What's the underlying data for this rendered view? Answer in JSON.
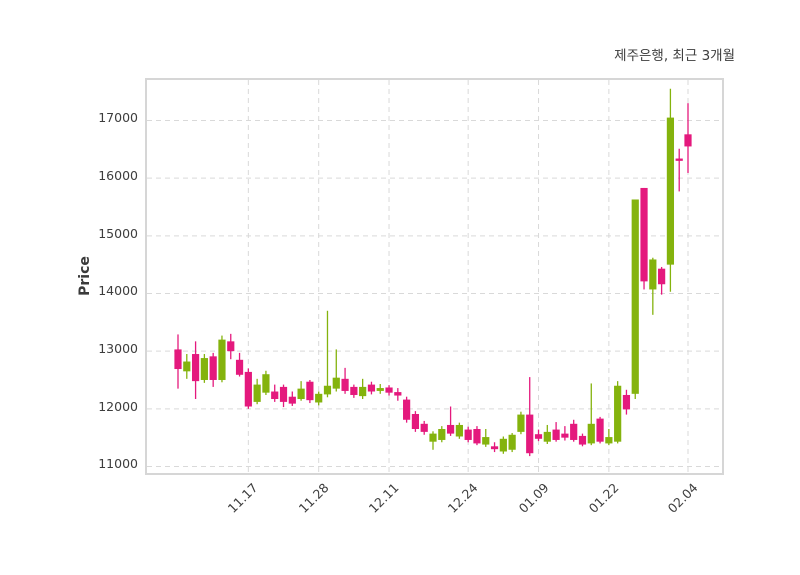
{
  "title": "제주은행, 최근 3개월",
  "ylabel": "Price",
  "chart_data": {
    "type": "candlestick",
    "title": "제주은행, 최근 3개월",
    "xlabel": "",
    "ylabel": "Price",
    "up_color": "#84b30d",
    "down_color": "#e4197d",
    "grid_color": "#d9d9d9",
    "text_color": "#3d3d3d",
    "grid": "both-dashed",
    "ylim": [
      10887,
      17702
    ],
    "yticks": [
      11000,
      12000,
      13000,
      14000,
      15000,
      16000,
      17000
    ],
    "xticks": [
      {
        "index": 8,
        "label": "11.17"
      },
      {
        "index": 16,
        "label": "11.28"
      },
      {
        "index": 24,
        "label": "12.11"
      },
      {
        "index": 33,
        "label": "12.24"
      },
      {
        "index": 41,
        "label": "01.09"
      },
      {
        "index": 49,
        "label": "01.22"
      },
      {
        "index": 58,
        "label": "02.04"
      }
    ],
    "ohlc_note": "each candle is [open, high, low, close] in KRW",
    "candles": [
      [
        13030,
        13290,
        12350,
        12690
      ],
      [
        12650,
        12950,
        12520,
        12820
      ],
      [
        12950,
        13170,
        12170,
        12480
      ],
      [
        12500,
        12950,
        12450,
        12880
      ],
      [
        12910,
        12970,
        12380,
        12500
      ],
      [
        12500,
        13270,
        12460,
        13200
      ],
      [
        13170,
        13300,
        12860,
        13000
      ],
      [
        12850,
        12970,
        12560,
        12590
      ],
      [
        12640,
        12700,
        12000,
        12040
      ],
      [
        12120,
        12520,
        12080,
        12420
      ],
      [
        12280,
        12660,
        12240,
        12600
      ],
      [
        12300,
        12420,
        12120,
        12170
      ],
      [
        12380,
        12420,
        12030,
        12120
      ],
      [
        12210,
        12300,
        12050,
        12090
      ],
      [
        12170,
        12480,
        12140,
        12350
      ],
      [
        12470,
        12500,
        12100,
        12150
      ],
      [
        12110,
        12300,
        12060,
        12260
      ],
      [
        12250,
        13700,
        12200,
        12400
      ],
      [
        12350,
        13030,
        12300,
        12540
      ],
      [
        12520,
        12710,
        12260,
        12310
      ],
      [
        12380,
        12420,
        12190,
        12240
      ],
      [
        12220,
        12520,
        12170,
        12380
      ],
      [
        12420,
        12470,
        12250,
        12300
      ],
      [
        12310,
        12430,
        12260,
        12360
      ],
      [
        12370,
        12410,
        12230,
        12280
      ],
      [
        12290,
        12360,
        12140,
        12230
      ],
      [
        12160,
        12210,
        11760,
        11810
      ],
      [
        11910,
        11960,
        11600,
        11650
      ],
      [
        11740,
        11790,
        11550,
        11600
      ],
      [
        11430,
        11610,
        11290,
        11570
      ],
      [
        11460,
        11700,
        11420,
        11650
      ],
      [
        11720,
        12040,
        11530,
        11570
      ],
      [
        11520,
        11760,
        11480,
        11720
      ],
      [
        11640,
        11690,
        11420,
        11460
      ],
      [
        11650,
        11700,
        11370,
        11400
      ],
      [
        11380,
        11650,
        11340,
        11510
      ],
      [
        11350,
        11420,
        11250,
        11300
      ],
      [
        11260,
        11520,
        11220,
        11480
      ],
      [
        11290,
        11580,
        11250,
        11550
      ],
      [
        11600,
        11950,
        11560,
        11900
      ],
      [
        11900,
        12550,
        11180,
        11230
      ],
      [
        11560,
        11640,
        11440,
        11480
      ],
      [
        11430,
        11720,
        11390,
        11600
      ],
      [
        11640,
        11770,
        11430,
        11460
      ],
      [
        11570,
        11700,
        11450,
        11500
      ],
      [
        11740,
        11810,
        11430,
        11460
      ],
      [
        11530,
        11570,
        11350,
        11380
      ],
      [
        11400,
        12440,
        11370,
        11740
      ],
      [
        11830,
        11860,
        11400,
        11430
      ],
      [
        11400,
        11650,
        11370,
        11510
      ],
      [
        11430,
        12480,
        11400,
        12400
      ],
      [
        12240,
        12330,
        11900,
        11990
      ],
      [
        12260,
        15630,
        12170,
        15630
      ],
      [
        15830,
        15830,
        14070,
        14210
      ],
      [
        14070,
        14620,
        13630,
        14590
      ],
      [
        14430,
        14460,
        13980,
        14160
      ],
      [
        14500,
        17550,
        14030,
        17050
      ],
      [
        16340,
        16510,
        15770,
        16300
      ],
      [
        16760,
        17300,
        16090,
        16550
      ]
    ]
  }
}
